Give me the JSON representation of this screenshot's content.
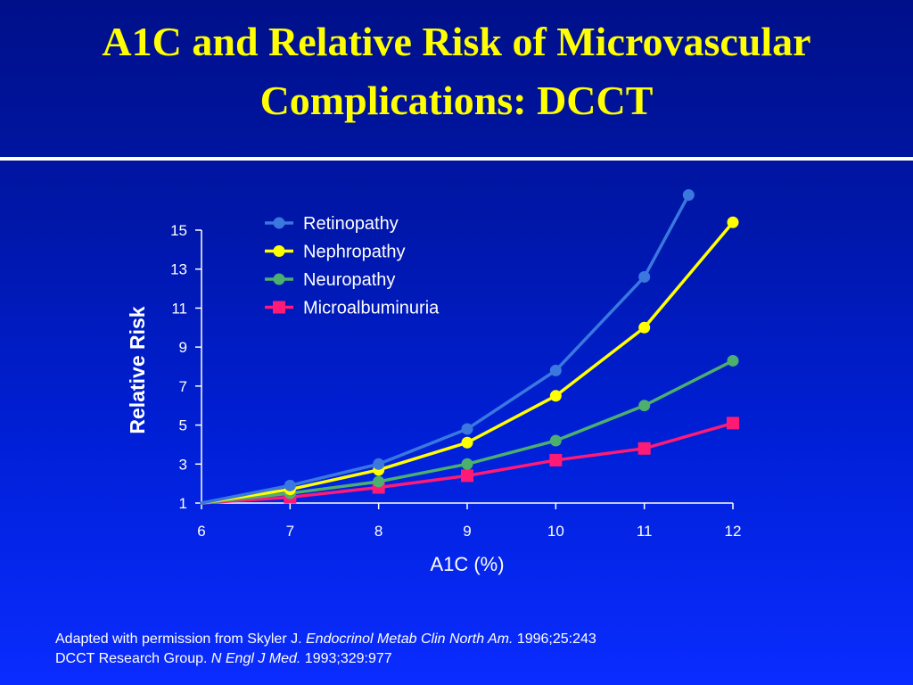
{
  "title": {
    "line1": "A1C and Relative Risk of Microvascular",
    "line2": "Complications: DCCT"
  },
  "colors": {
    "background_top": "#00108a",
    "background_bottom": "#0a2cff",
    "title": "#ffff00",
    "rule": "#ffffff",
    "text": "#ffffff"
  },
  "chart_data": {
    "type": "line",
    "xlabel": "A1C (%)",
    "ylabel": "Relative Risk",
    "xlim": [
      6,
      12
    ],
    "ylim": [
      1,
      15
    ],
    "xticks": [
      6,
      7,
      8,
      9,
      10,
      11,
      12
    ],
    "yticks": [
      1,
      3,
      5,
      7,
      9,
      11,
      13,
      15
    ],
    "grid": false,
    "legend_position": "top-center",
    "series": [
      {
        "name": "Retinopathy",
        "color": "#3a78e0",
        "marker": "circle",
        "x": [
          6,
          7,
          8,
          9,
          10,
          11,
          11.5
        ],
        "y": [
          1.0,
          1.9,
          3.0,
          4.8,
          7.8,
          12.6,
          16.8
        ]
      },
      {
        "name": "Nephropathy",
        "color": "#ffff00",
        "marker": "circle",
        "x": [
          6,
          7,
          8,
          9,
          10,
          11,
          12
        ],
        "y": [
          1.0,
          1.7,
          2.7,
          4.1,
          6.5,
          10.0,
          15.4
        ]
      },
      {
        "name": "Neuropathy",
        "color": "#4caf6e",
        "marker": "circle",
        "x": [
          6,
          7,
          8,
          9,
          10,
          11,
          12
        ],
        "y": [
          1.0,
          1.5,
          2.1,
          3.0,
          4.2,
          6.0,
          8.3
        ]
      },
      {
        "name": "Microalbuminuria",
        "color": "#ff1a75",
        "marker": "square",
        "x": [
          6,
          7,
          8,
          9,
          10,
          11,
          12
        ],
        "y": [
          1.0,
          1.3,
          1.8,
          2.4,
          3.2,
          3.8,
          5.1
        ]
      }
    ]
  },
  "citation": {
    "line1_pre": "Adapted with permission from Skyler J. ",
    "line1_journal": "Endocrinol Metab Clin North Am.",
    "line1_post": " 1996;25:243",
    "line2_pre": "DCCT Research Group. ",
    "line2_journal": "N Engl J Med.",
    "line2_post": " 1993;329:977"
  }
}
